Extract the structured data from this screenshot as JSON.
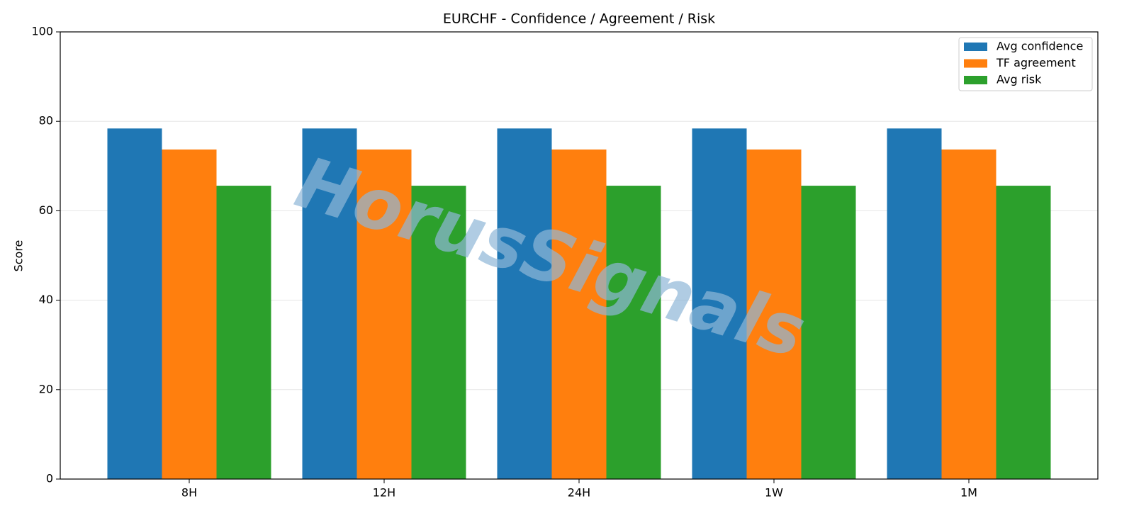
{
  "chart_data": {
    "type": "bar",
    "title": "EURCHF - Confidence / Agreement / Risk",
    "y_label": "Score",
    "watermark": "HorusSignals",
    "categories": [
      "8H",
      "12H",
      "24H",
      "1W",
      "1M"
    ],
    "series": [
      {
        "name": "Avg confidence",
        "color": "#1f77b4",
        "values": [
          78.4,
          78.4,
          78.4,
          78.4,
          78.4
        ]
      },
      {
        "name": "TF agreement",
        "color": "#ff7f0e",
        "values": [
          73.7,
          73.7,
          73.7,
          73.7,
          73.7
        ]
      },
      {
        "name": "Avg risk",
        "color": "#2ca02c",
        "values": [
          65.6,
          65.6,
          65.6,
          65.6,
          65.6
        ]
      }
    ],
    "ylim": [
      0,
      100
    ],
    "yticks": [
      0,
      20,
      40,
      60,
      80,
      100
    ],
    "grid": true,
    "legend": "upper right"
  }
}
